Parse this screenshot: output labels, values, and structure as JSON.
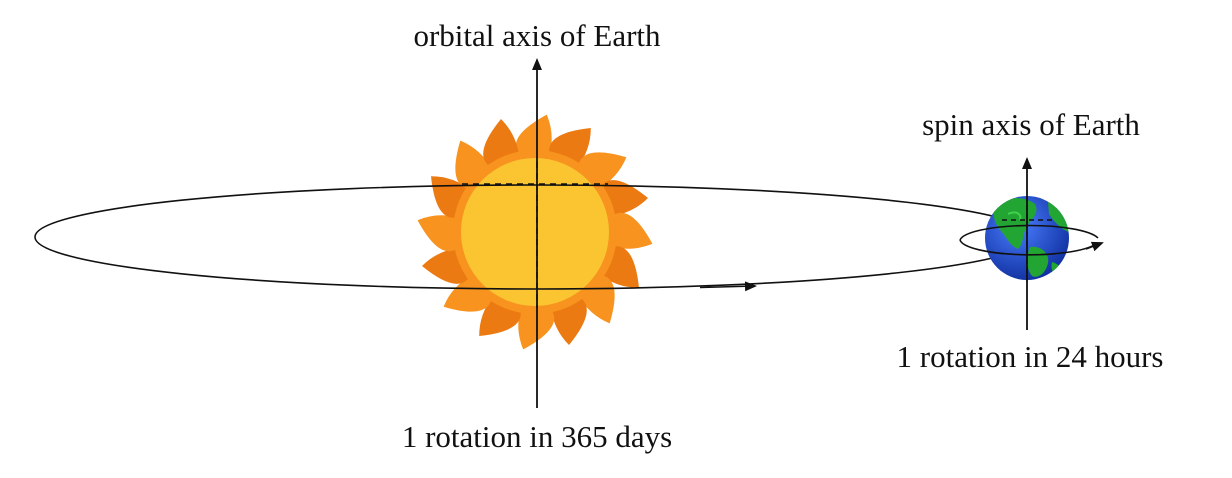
{
  "labels": {
    "orbital_axis": "orbital axis of Earth",
    "orbital_period": "1 rotation in 365 days",
    "spin_axis": "spin axis of Earth",
    "spin_period": "1 rotation in 24 hours"
  },
  "colors": {
    "sun_ray": "#f7931e",
    "sun_ray_dark": "#ec7a12",
    "sun_disc": "#fbc531",
    "earth_ocean": "#1e4fd6",
    "earth_land": "#22a532",
    "line": "#111111"
  },
  "icons": {
    "sun": "sun-icon",
    "earth": "earth-globe-icon"
  }
}
